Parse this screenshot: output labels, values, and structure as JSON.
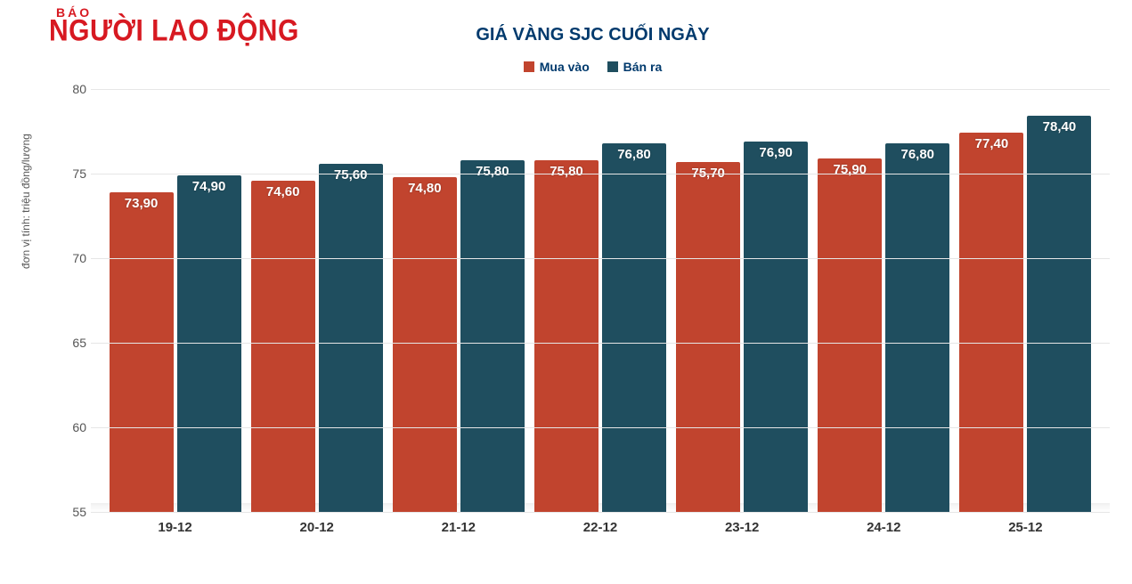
{
  "logo": {
    "top": "BÁO",
    "main": "NGƯỜI LAO ĐỘNG",
    "color": "#d71921"
  },
  "chart": {
    "type": "bar",
    "title": "GIÁ VÀNG SJC CUỐI NGÀY",
    "title_color": "#003a6d",
    "title_fontsize": 20,
    "ylabel": "đơn vị tính: triệu đồng/lượng",
    "ylabel_fontsize": 12,
    "categories": [
      "19-12",
      "20-12",
      "21-12",
      "22-12",
      "23-12",
      "24-12",
      "25-12"
    ],
    "series": [
      {
        "name": "Mua vào",
        "color": "#c1442e",
        "values": [
          73.9,
          74.6,
          74.8,
          75.8,
          75.7,
          75.9,
          77.4
        ],
        "labels": [
          "73,90",
          "74,60",
          "74,80",
          "75,80",
          "75,70",
          "75,90",
          "77,40"
        ]
      },
      {
        "name": "Bán ra",
        "color": "#1f4e5f",
        "values": [
          74.9,
          75.6,
          75.8,
          76.8,
          76.9,
          76.8,
          78.4
        ],
        "labels": [
          "74,90",
          "75,60",
          "75,80",
          "76,80",
          "76,90",
          "76,80",
          "78,40"
        ]
      }
    ],
    "ylim": [
      55,
      80
    ],
    "ytick_step": 5,
    "yticks": [
      55,
      60,
      65,
      70,
      75,
      80
    ],
    "grid_color": "#e6e6e6",
    "background_color": "#ffffff",
    "bar_label_color": "#ffffff",
    "bar_label_fontsize": 15,
    "xaxis_fontsize": 15,
    "yaxis_fontsize": 14,
    "bar_width": 0.48,
    "legend_position": "top-center"
  }
}
